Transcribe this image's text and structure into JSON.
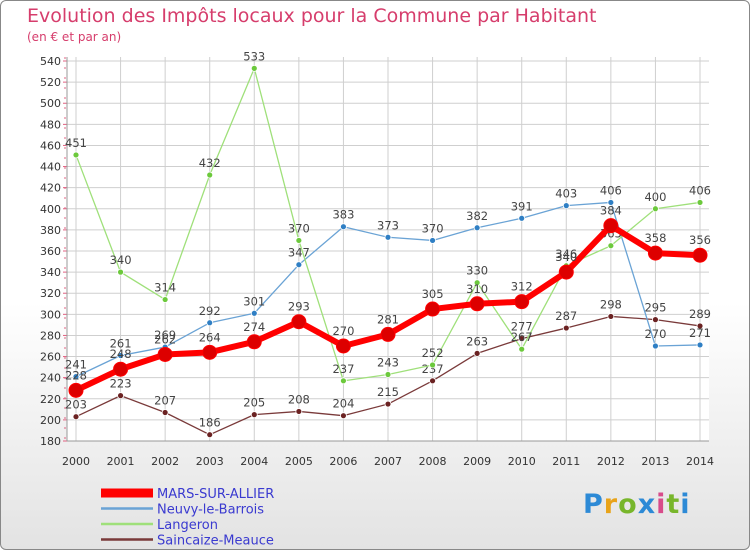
{
  "colors": {
    "grid": "#cfcfcf",
    "axis_accent": "#e06080",
    "logo": [
      "#2d8ad6",
      "#e8a319",
      "#78b62b",
      "#2d8ad6",
      "#d84b8a",
      "#78b62b"
    ]
  },
  "logo_text": [
    "P",
    "r",
    "o",
    "x",
    "i",
    "t",
    "i"
  ],
  "chart_data": {
    "type": "line",
    "title": "Evolution des Impôts locaux pour la Commune par Habitant",
    "subtitle": "(en € et par an)",
    "x": [
      2000,
      2001,
      2002,
      2003,
      2004,
      2005,
      2006,
      2007,
      2008,
      2009,
      2010,
      2011,
      2012,
      2013,
      2014
    ],
    "ylim": [
      180,
      540
    ],
    "yticks": [
      180,
      200,
      220,
      240,
      260,
      280,
      300,
      320,
      340,
      360,
      380,
      400,
      420,
      440,
      460,
      480,
      500,
      520,
      540
    ],
    "grid": true,
    "legend_position": "bottom-left",
    "series": [
      {
        "name": "MARS-SUR-ALLIER",
        "color": "#ff0000",
        "marker": "#dd0000",
        "width": 6,
        "values": [
          228,
          248,
          262,
          264,
          274,
          293,
          270,
          281,
          305,
          310,
          312,
          340,
          384,
          358,
          356
        ],
        "labels": [
          "228",
          "248",
          "262",
          "264",
          "274",
          "293",
          "270",
          "281",
          "305",
          "310",
          "312",
          "340",
          "384",
          "358",
          "356"
        ]
      },
      {
        "name": "Neuvy-le-Barrois",
        "color": "#6aa3d5",
        "marker": "#2f7fc4",
        "width": 1.3,
        "values": [
          241,
          261,
          269,
          292,
          301,
          347,
          383,
          373,
          370,
          382,
          391,
          403,
          406,
          270,
          271
        ],
        "labels": [
          "241",
          "261",
          "269",
          "292",
          "301",
          "347",
          "383",
          "373",
          "370",
          "382",
          "391",
          "403",
          "406",
          "270",
          "271"
        ]
      },
      {
        "name": "Langeron",
        "color": "#9fe07a",
        "marker": "#6cc93c",
        "width": 1.3,
        "values": [
          451,
          340,
          314,
          432,
          533,
          370,
          237,
          243,
          252,
          330,
          267,
          346,
          365,
          400,
          406
        ],
        "labels": [
          "451",
          "340",
          "314",
          "432",
          "533",
          "370",
          "237",
          "243",
          "252",
          "330",
          "267",
          "346",
          "365",
          "400",
          "406"
        ]
      },
      {
        "name": "Saincaize-Meauce",
        "color": "#7a3a3a",
        "marker": "#6b2222",
        "width": 1.3,
        "values": [
          203,
          223,
          207,
          186,
          205,
          208,
          204,
          215,
          237,
          263,
          277,
          287,
          298,
          295,
          289
        ],
        "labels": [
          "203",
          "223",
          "207",
          "186",
          "205",
          "208",
          "204",
          "215",
          "237",
          "263",
          "277",
          "287",
          "298",
          "295",
          "289"
        ]
      }
    ]
  }
}
